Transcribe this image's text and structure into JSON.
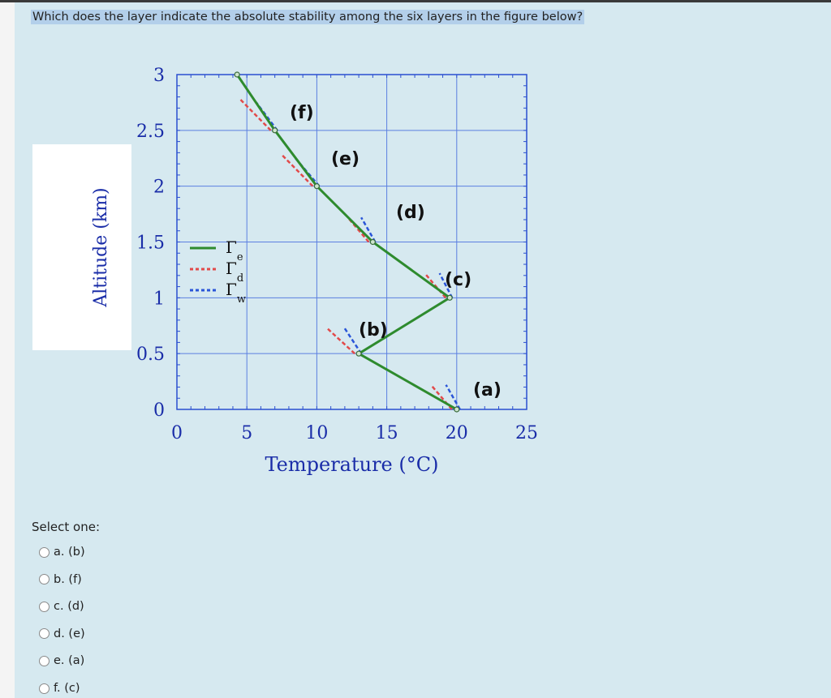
{
  "question": "Which does the layer indicate the absolute stability among the six layers in the figure below?",
  "chart_data": {
    "type": "line",
    "xlabel": "Temperature (°C)",
    "ylabel": "Altitude (km)",
    "xlim": [
      0,
      25
    ],
    "ylim": [
      0,
      3
    ],
    "x_ticks": [
      "0",
      "5",
      "10",
      "15",
      "20",
      "25"
    ],
    "y_ticks": [
      "0",
      "0.5",
      "1",
      "1.5",
      "2",
      "2.5",
      "3"
    ],
    "grid": true,
    "series": [
      {
        "name": "Γe",
        "color": "#2e8b2e",
        "points": [
          [
            20,
            0
          ],
          [
            13,
            0.5
          ],
          [
            19.5,
            1
          ],
          [
            14,
            1.5
          ],
          [
            10,
            2
          ],
          [
            7,
            2.5
          ],
          [
            4.3,
            3
          ]
        ]
      }
    ],
    "legend": {
      "entries": [
        "Γe",
        "Γd",
        "Γw"
      ],
      "placement": "left"
    },
    "layer_labels": [
      "(a)",
      "(b)",
      "(c)",
      "(d)",
      "(e)",
      "(f)"
    ],
    "colors": {
      "environment": "#2e8b2e",
      "dry_adiabatic": "#e24a4a",
      "wet_adiabatic": "#2a55d8",
      "axis_text": "#1a2da8"
    }
  },
  "select_label": "Select one:",
  "options": [
    {
      "letter": "a.",
      "text": "(b)"
    },
    {
      "letter": "b.",
      "text": "(f)"
    },
    {
      "letter": "c.",
      "text": "(d)"
    },
    {
      "letter": "d.",
      "text": "(e)"
    },
    {
      "letter": "e.",
      "text": "(a)"
    },
    {
      "letter": "f.",
      "text": "(c)"
    }
  ]
}
